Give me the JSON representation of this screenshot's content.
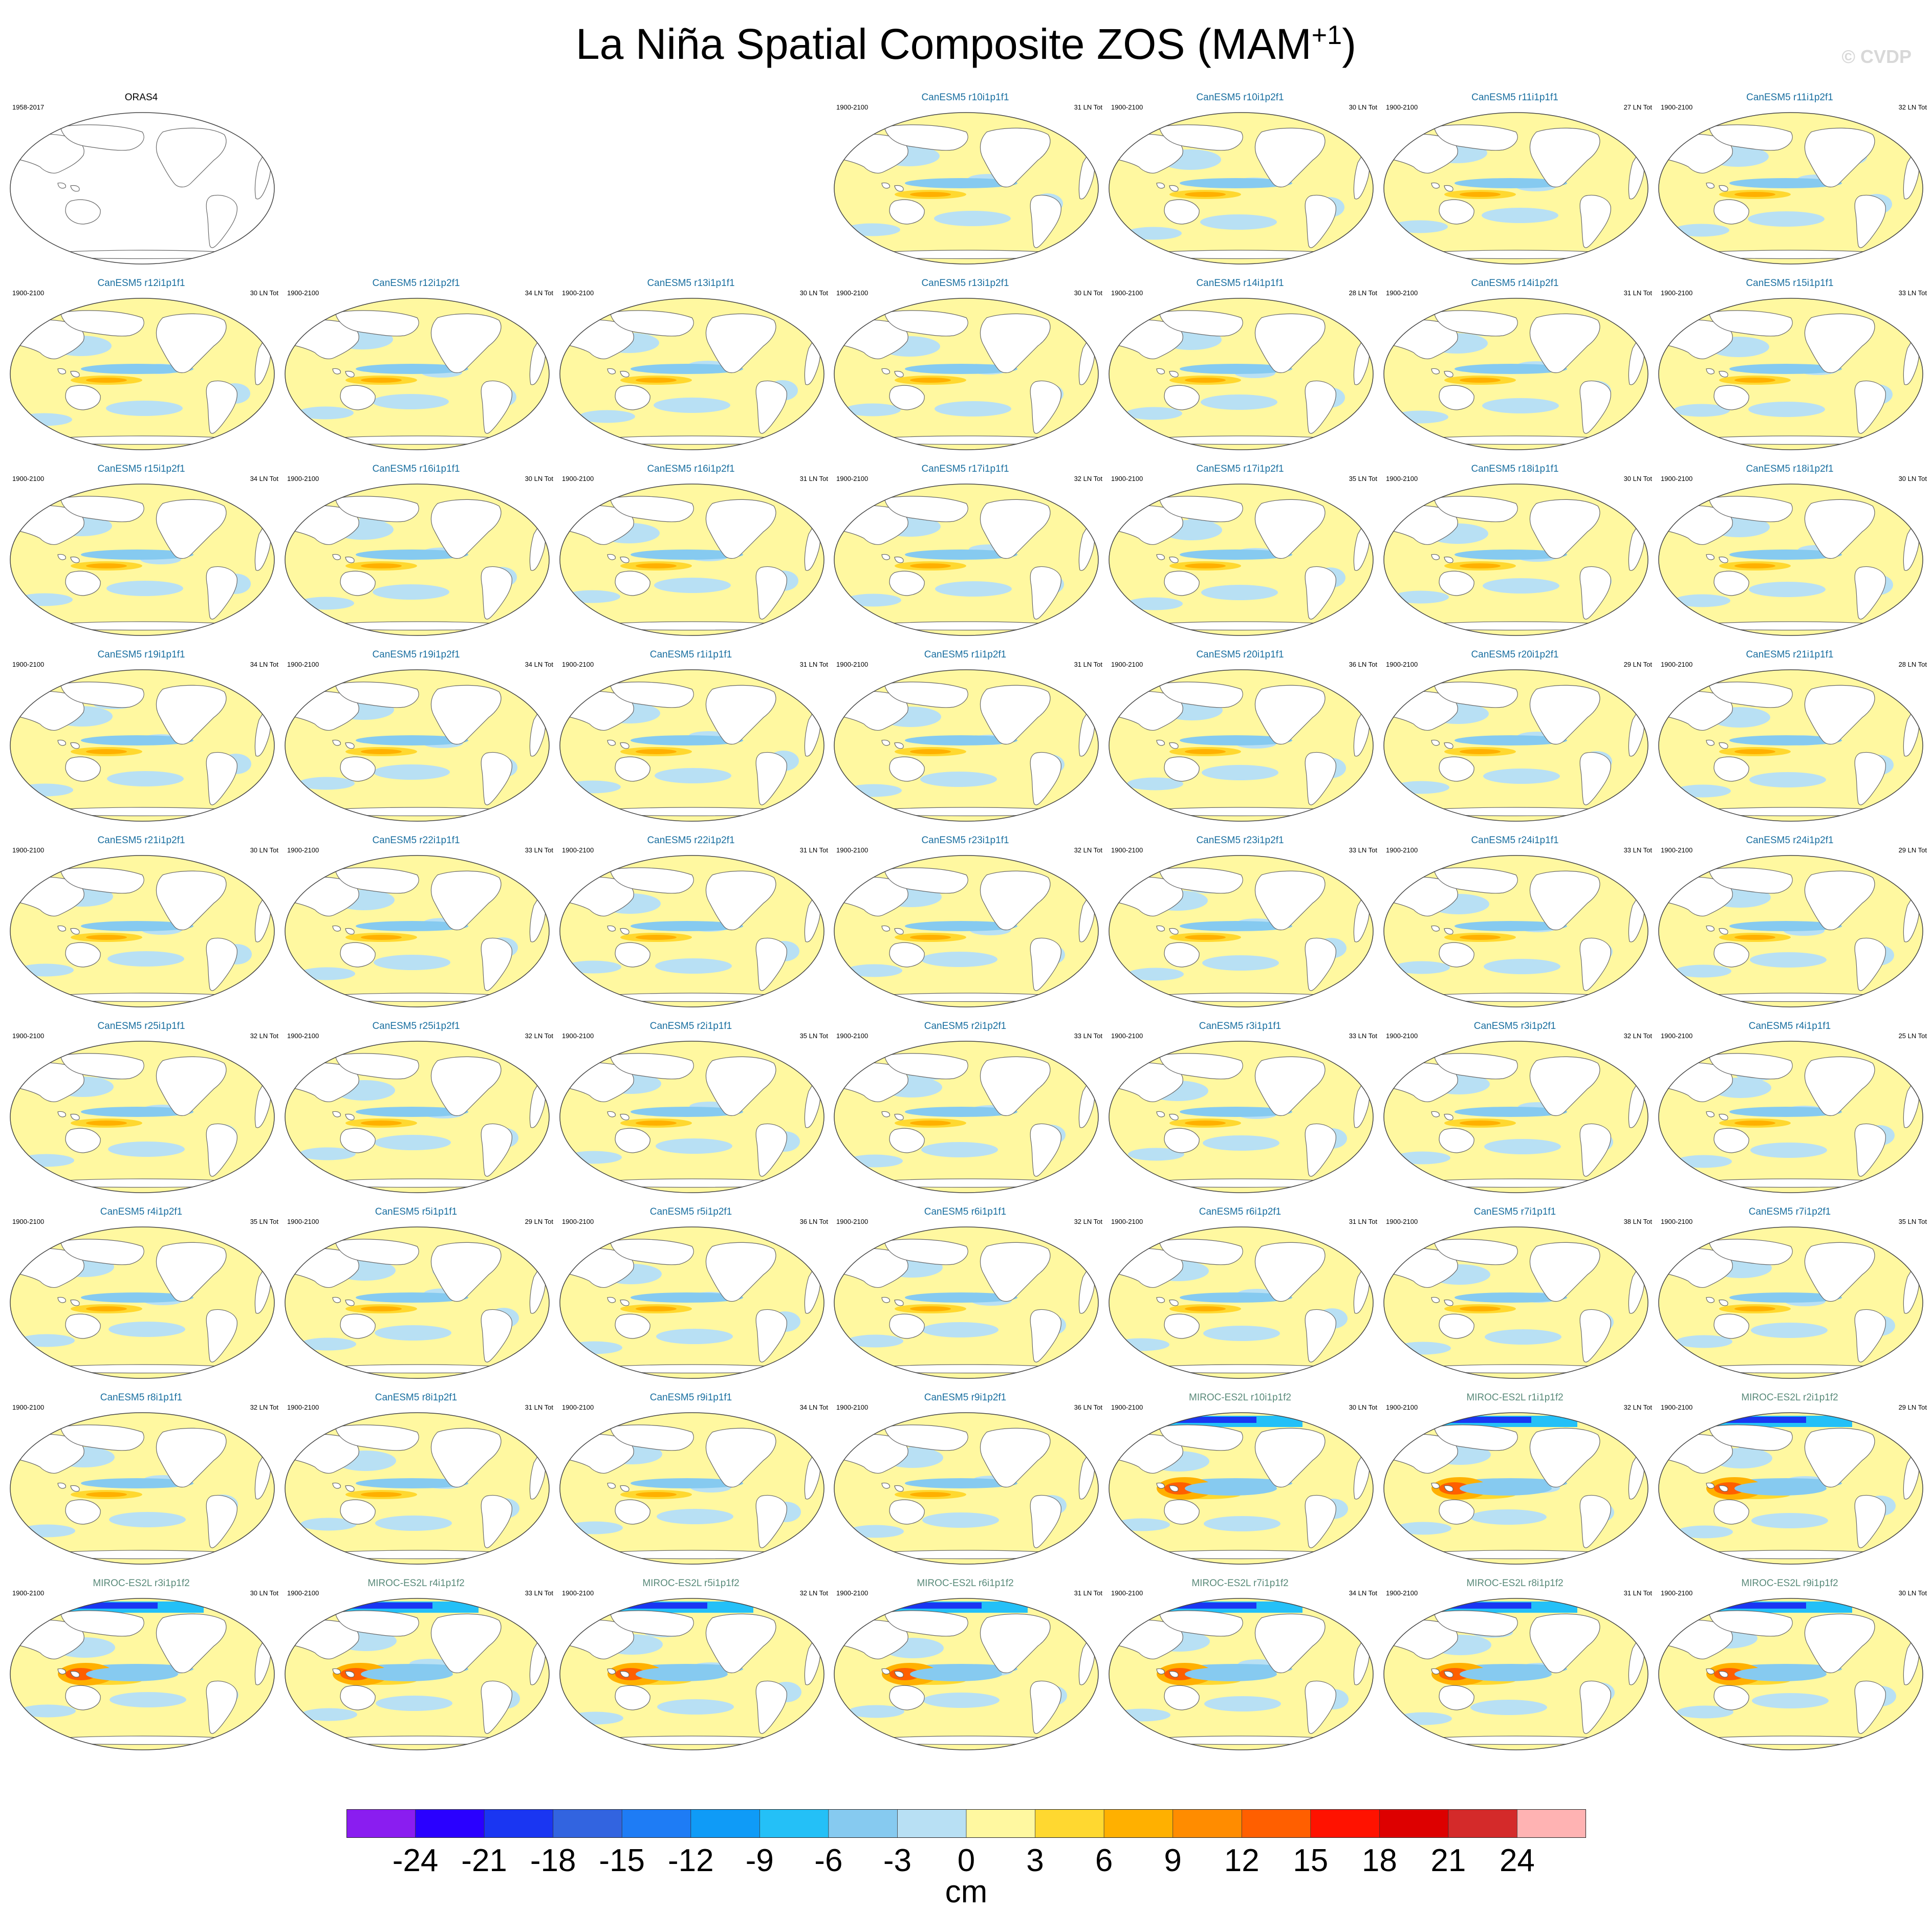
{
  "title": {
    "main": "La Niña Spatial Composite ZOS (MAM",
    "sup": "+1",
    "close": ")"
  },
  "credit": "© CVDP",
  "observation": {
    "name": "ORAS4",
    "period": "1958-2017"
  },
  "model_period": "1900-2100",
  "count_suffix": " LN Tot",
  "panels": [
    {
      "model": "CanESM5",
      "member": "r10i1p1f1",
      "count": "31"
    },
    {
      "model": "CanESM5",
      "member": "r10i1p2f1",
      "count": "30"
    },
    {
      "model": "CanESM5",
      "member": "r11i1p1f1",
      "count": "27"
    },
    {
      "model": "CanESM5",
      "member": "r11i1p2f1",
      "count": "32"
    },
    {
      "model": "CanESM5",
      "member": "r12i1p1f1",
      "count": "30"
    },
    {
      "model": "CanESM5",
      "member": "r12i1p2f1",
      "count": "34"
    },
    {
      "model": "CanESM5",
      "member": "r13i1p1f1",
      "count": "30"
    },
    {
      "model": "CanESM5",
      "member": "r13i1p2f1",
      "count": "30"
    },
    {
      "model": "CanESM5",
      "member": "r14i1p1f1",
      "count": "28"
    },
    {
      "model": "CanESM5",
      "member": "r14i1p2f1",
      "count": "31"
    },
    {
      "model": "CanESM5",
      "member": "r15i1p1f1",
      "count": "33"
    },
    {
      "model": "CanESM5",
      "member": "r15i1p2f1",
      "count": "34"
    },
    {
      "model": "CanESM5",
      "member": "r16i1p1f1",
      "count": "30"
    },
    {
      "model": "CanESM5",
      "member": "r16i1p2f1",
      "count": "31"
    },
    {
      "model": "CanESM5",
      "member": "r17i1p1f1",
      "count": "32"
    },
    {
      "model": "CanESM5",
      "member": "r17i1p2f1",
      "count": "35"
    },
    {
      "model": "CanESM5",
      "member": "r18i1p1f1",
      "count": "30"
    },
    {
      "model": "CanESM5",
      "member": "r18i1p2f1",
      "count": "30"
    },
    {
      "model": "CanESM5",
      "member": "r19i1p1f1",
      "count": "34"
    },
    {
      "model": "CanESM5",
      "member": "r19i1p2f1",
      "count": "34"
    },
    {
      "model": "CanESM5",
      "member": "r1i1p1f1",
      "count": "31"
    },
    {
      "model": "CanESM5",
      "member": "r1i1p2f1",
      "count": "31"
    },
    {
      "model": "CanESM5",
      "member": "r20i1p1f1",
      "count": "36"
    },
    {
      "model": "CanESM5",
      "member": "r20i1p2f1",
      "count": "29"
    },
    {
      "model": "CanESM5",
      "member": "r21i1p1f1",
      "count": "28"
    },
    {
      "model": "CanESM5",
      "member": "r21i1p2f1",
      "count": "30"
    },
    {
      "model": "CanESM5",
      "member": "r22i1p1f1",
      "count": "33"
    },
    {
      "model": "CanESM5",
      "member": "r22i1p2f1",
      "count": "31"
    },
    {
      "model": "CanESM5",
      "member": "r23i1p1f1",
      "count": "32"
    },
    {
      "model": "CanESM5",
      "member": "r23i1p2f1",
      "count": "33"
    },
    {
      "model": "CanESM5",
      "member": "r24i1p1f1",
      "count": "33"
    },
    {
      "model": "CanESM5",
      "member": "r24i1p2f1",
      "count": "29"
    },
    {
      "model": "CanESM5",
      "member": "r25i1p1f1",
      "count": "32"
    },
    {
      "model": "CanESM5",
      "member": "r25i1p2f1",
      "count": "32"
    },
    {
      "model": "CanESM5",
      "member": "r2i1p1f1",
      "count": "35"
    },
    {
      "model": "CanESM5",
      "member": "r2i1p2f1",
      "count": "33"
    },
    {
      "model": "CanESM5",
      "member": "r3i1p1f1",
      "count": "33"
    },
    {
      "model": "CanESM5",
      "member": "r3i1p2f1",
      "count": "32"
    },
    {
      "model": "CanESM5",
      "member": "r4i1p1f1",
      "count": "25"
    },
    {
      "model": "CanESM5",
      "member": "r4i1p2f1",
      "count": "35"
    },
    {
      "model": "CanESM5",
      "member": "r5i1p1f1",
      "count": "29"
    },
    {
      "model": "CanESM5",
      "member": "r5i1p2f1",
      "count": "36"
    },
    {
      "model": "CanESM5",
      "member": "r6i1p1f1",
      "count": "32"
    },
    {
      "model": "CanESM5",
      "member": "r6i1p2f1",
      "count": "31"
    },
    {
      "model": "CanESM5",
      "member": "r7i1p1f1",
      "count": "38"
    },
    {
      "model": "CanESM5",
      "member": "r7i1p2f1",
      "count": "35"
    },
    {
      "model": "CanESM5",
      "member": "r8i1p1f1",
      "count": "32"
    },
    {
      "model": "CanESM5",
      "member": "r8i1p2f1",
      "count": "31"
    },
    {
      "model": "CanESM5",
      "member": "r9i1p1f1",
      "count": "34"
    },
    {
      "model": "CanESM5",
      "member": "r9i1p2f1",
      "count": "36"
    },
    {
      "model": "MIROC-ES2L",
      "member": "r10i1p1f2",
      "count": "30"
    },
    {
      "model": "MIROC-ES2L",
      "member": "r1i1p1f2",
      "count": "32"
    },
    {
      "model": "MIROC-ES2L",
      "member": "r2i1p1f2",
      "count": "29"
    },
    {
      "model": "MIROC-ES2L",
      "member": "r3i1p1f2",
      "count": "30"
    },
    {
      "model": "MIROC-ES2L",
      "member": "r4i1p1f2",
      "count": "33"
    },
    {
      "model": "MIROC-ES2L",
      "member": "r5i1p1f2",
      "count": "32"
    },
    {
      "model": "MIROC-ES2L",
      "member": "r6i1p1f2",
      "count": "31"
    },
    {
      "model": "MIROC-ES2L",
      "member": "r7i1p1f2",
      "count": "34"
    },
    {
      "model": "MIROC-ES2L",
      "member": "r8i1p1f2",
      "count": "31"
    },
    {
      "model": "MIROC-ES2L",
      "member": "r9i1p1f2",
      "count": "30"
    }
  ],
  "colorbar": {
    "unit": "cm",
    "labels": [
      "-24",
      "-21",
      "-18",
      "-15",
      "-12",
      "-9",
      "-6",
      "-3",
      "0",
      "3",
      "6",
      "9",
      "12",
      "15",
      "18",
      "21",
      "24"
    ],
    "colors": [
      "#8a1df0",
      "#2a00ff",
      "#1a36f2",
      "#3264e0",
      "#1e7cf5",
      "#0f9bf7",
      "#24c0f7",
      "#86caf0",
      "#b8e0f4",
      "#fff8a0",
      "#ffd830",
      "#ffb000",
      "#ff8c00",
      "#ff5f00",
      "#ff1200",
      "#dd0000",
      "#d42a2a",
      "#ffb3b3"
    ]
  }
}
